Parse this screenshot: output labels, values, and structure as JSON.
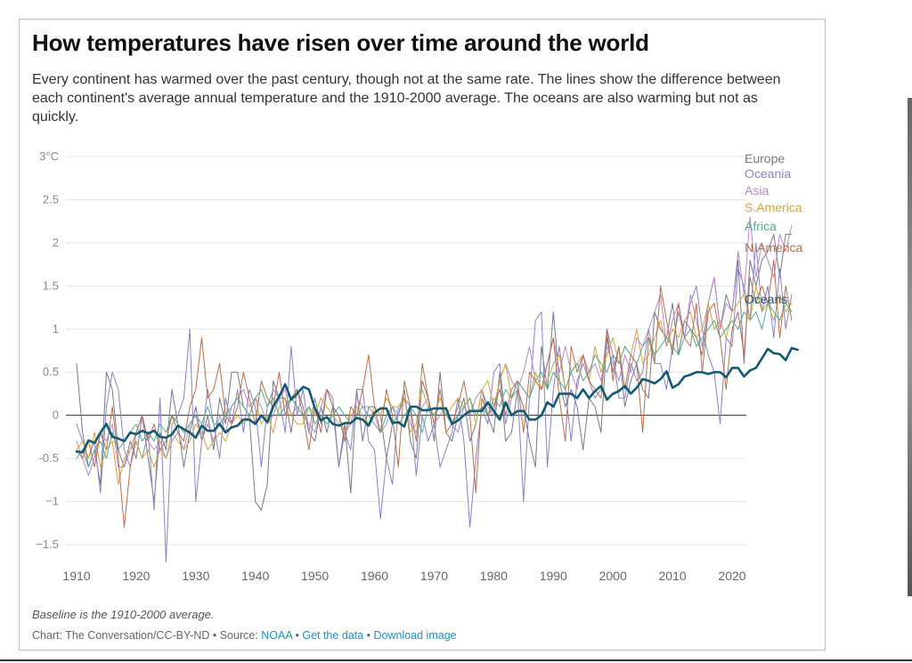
{
  "header": {
    "title": "How temperatures have risen over time around the world",
    "subtitle": "Every continent has warmed over the past century, though not at the same rate. The lines show the difference between each continent's average annual temperature and the 1910-2000 average. The oceans are also warming but not as quickly."
  },
  "footer": {
    "note": "Baseline is the 1910-2000 average.",
    "credit": "Chart: The Conversation/CC-BY-ND • Source: ",
    "source_link": "NOAA",
    "sep1": " • ",
    "data_link": "Get the data",
    "sep2": " • ",
    "download_link": "Download image"
  },
  "chart_data": {
    "type": "line",
    "title": "How temperatures have risen over time around the world",
    "xlabel": "",
    "ylabel": "",
    "xlim": [
      1910,
      2020
    ],
    "ylim": [
      -1.5,
      3
    ],
    "x_ticks": [
      1910,
      1920,
      1930,
      1940,
      1950,
      1960,
      1970,
      1980,
      1990,
      2000,
      2010,
      2020
    ],
    "y_ticks": [
      {
        "value": 3,
        "label": "3°C"
      },
      {
        "value": 2.5,
        "label": "2.5"
      },
      {
        "value": 2,
        "label": "2"
      },
      {
        "value": 1.5,
        "label": "1.5"
      },
      {
        "value": 1,
        "label": "1"
      },
      {
        "value": 0.5,
        "label": "0.5"
      },
      {
        "value": 0,
        "label": "0"
      },
      {
        "value": -0.5,
        "label": "-0.5"
      },
      {
        "value": -1,
        "label": "−1"
      },
      {
        "value": -1.5,
        "label": "−1.5"
      }
    ],
    "grid": true,
    "x_start": 1910,
    "series": [
      {
        "name": "Europe",
        "color": "#757a8a",
        "width": 1,
        "values": [
          0.6,
          -0.2,
          -0.6,
          -0.4,
          -0.8,
          0.5,
          0.3,
          -0.4,
          -0.6,
          -0.3,
          -0.5,
          0.0,
          -0.5,
          -1.0,
          -0.2,
          -0.4,
          0.3,
          -0.1,
          -0.6,
          -0.2,
          0.1,
          -0.3,
          0.0,
          -0.4,
          0.2,
          -0.1,
          0.5,
          0.5,
          0.1,
          0.0,
          -1.0,
          -1.1,
          -0.8,
          0.4,
          0.2,
          0.2,
          -0.2,
          0.3,
          0.1,
          -0.2,
          -0.3,
          0.1,
          -0.2,
          0.1,
          -0.6,
          -0.1,
          -0.9,
          0.3,
          -0.3,
          0.1,
          0.1,
          0.0,
          -0.5,
          -0.1,
          0.0,
          0.3,
          -0.3,
          -0.5,
          0.4,
          0.2,
          -0.3,
          0.5,
          -0.2,
          -0.3,
          0.0,
          0.2,
          -0.3,
          -0.1,
          0.3,
          0.0,
          -0.2,
          0.5,
          -0.3,
          -0.2,
          0.3,
          0.1,
          -0.3,
          -0.6,
          0.8,
          0.3,
          1.2,
          0.4,
          0.1,
          0.3,
          0.1,
          -0.4,
          0.2,
          0.1,
          -0.2,
          0.9,
          0.5,
          0.8,
          0.1,
          0.4,
          0.6,
          0.3,
          0.2,
          1.2,
          1.0,
          0.9,
          1.3,
          0.7,
          1.1,
          1.0,
          0.9,
          0.7,
          1.3,
          1.6,
          1.0,
          1.4,
          1.2,
          1.8,
          0.6,
          1.8,
          1.5,
          1.8,
          1.9,
          2.1,
          1.6,
          2.1,
          2.1
        ]
      },
      {
        "name": "Oceania",
        "color": "#8b82c8",
        "width": 1,
        "values": [
          -0.1,
          -0.3,
          -0.5,
          -0.3,
          -0.9,
          0.1,
          0.5,
          0.3,
          -0.4,
          -0.6,
          -0.3,
          -0.5,
          -0.2,
          -1.1,
          0.2,
          -1.7,
          -0.1,
          0.0,
          0.2,
          1.0,
          -1.0,
          -0.3,
          0.3,
          -0.1,
          -0.5,
          0.2,
          -0.1,
          0.3,
          -0.2,
          0.3,
          0.1,
          -0.6,
          0.1,
          0.3,
          0.2,
          -0.2,
          0.8,
          0.0,
          0.3,
          -0.2,
          0.2,
          -0.1,
          0.3,
          0.2,
          -0.6,
          -0.2,
          -0.4,
          0.3,
          0.3,
          -0.3,
          -0.4,
          -1.2,
          -0.5,
          -0.8,
          0.1,
          0.2,
          0.1,
          -0.7,
          0.0,
          -0.3,
          -0.1,
          -0.6,
          -0.4,
          -0.2,
          0.2,
          -0.3,
          -1.3,
          -0.5,
          0.1,
          -0.1,
          0.5,
          0.6,
          -0.1,
          0.2,
          0.3,
          -1.0,
          0.2,
          1.1,
          1.2,
          -0.6,
          0.3,
          0.8,
          0.3,
          -0.3,
          0.4,
          0.6,
          0.4,
          0.2,
          0.3,
          1.0,
          0.7,
          0.2,
          0.2,
          0.6,
          0.4,
          0.5,
          1.0,
          0.6,
          0.6,
          0.3,
          0.8,
          1.2,
          0.9,
          1.3,
          1.5,
          1.0,
          0.7,
          0.5,
          -0.1,
          0.9,
          0.8,
          1.7,
          1.5,
          1.1,
          2.0,
          1.2,
          1.5,
          0.9,
          1.7,
          1.0,
          1.4
        ]
      },
      {
        "name": "Asia",
        "color": "#b989cc",
        "width": 1,
        "values": [
          -0.3,
          -0.5,
          -0.7,
          -0.5,
          -0.2,
          -0.3,
          -0.1,
          -0.6,
          -0.6,
          -0.4,
          -0.2,
          0.0,
          -0.3,
          -0.4,
          -0.3,
          -0.5,
          -0.3,
          -0.2,
          -0.4,
          -0.1,
          0.0,
          -0.3,
          -0.1,
          -0.3,
          0.0,
          -0.2,
          0.1,
          0.2,
          0.3,
          0.1,
          0.2,
          0.1,
          -0.1,
          0.0,
          0.2,
          0.3,
          0.0,
          0.1,
          0.0,
          -0.1,
          -0.2,
          0.1,
          0.3,
          0.1,
          0.0,
          -0.2,
          -0.1,
          0.2,
          0.1,
          0.1,
          0.0,
          -0.2,
          -0.1,
          0.1,
          0.0,
          0.2,
          -0.1,
          -0.2,
          0.1,
          0.2,
          -0.1,
          0.0,
          0.1,
          -0.1,
          -0.2,
          0.1,
          0.0,
          0.2,
          0.3,
          0.1,
          0.0,
          0.4,
          0.6,
          0.4,
          0.3,
          0.5,
          0.8,
          0.4,
          0.3,
          0.6,
          0.9,
          0.5,
          0.8,
          0.5,
          0.3,
          0.7,
          0.5,
          0.6,
          0.4,
          0.8,
          0.6,
          0.4,
          0.7,
          0.5,
          0.9,
          0.8,
          1.0,
          1.2,
          1.4,
          0.8,
          1.1,
          1.3,
          0.9,
          1.4,
          1.1,
          0.8,
          1.3,
          1.6,
          1.0,
          1.3,
          1.2,
          1.9,
          1.4,
          2.3,
          1.6,
          2.0,
          1.8,
          1.6,
          2.1,
          1.9,
          2.2
        ]
      },
      {
        "name": "S.America",
        "color": "#d3a637",
        "width": 1,
        "values": [
          -0.4,
          -0.3,
          -0.5,
          -0.2,
          -0.6,
          -0.4,
          -0.3,
          -0.8,
          -0.5,
          -0.4,
          -0.3,
          -0.5,
          -0.4,
          -0.6,
          -0.4,
          -0.5,
          -0.2,
          -0.3,
          -0.4,
          -0.3,
          -0.1,
          -0.2,
          -0.4,
          -0.3,
          -0.2,
          -0.3,
          -0.1,
          0.0,
          -0.1,
          0.0,
          0.2,
          -0.1,
          0.0,
          -0.2,
          0.1,
          0.2,
          0.0,
          -0.1,
          -0.1,
          0.1,
          0.0,
          0.2,
          0.1,
          0.0,
          -0.1,
          -0.2,
          0.0,
          0.1,
          0.0,
          -0.1,
          0.1,
          0.0,
          0.2,
          0.1,
          0.1,
          0.2,
          -0.2,
          -0.1,
          0.3,
          0.1,
          0.0,
          0.2,
          0.0,
          0.1,
          0.2,
          0.1,
          0.2,
          -0.1,
          0.3,
          0.4,
          0.1,
          0.4,
          0.6,
          0.2,
          0.4,
          0.3,
          0.2,
          0.5,
          0.3,
          0.4,
          0.6,
          0.7,
          0.3,
          0.5,
          0.6,
          0.7,
          0.4,
          0.8,
          0.5,
          0.7,
          0.9,
          0.6,
          0.8,
          0.7,
          1.0,
          0.6,
          0.7,
          0.9,
          1.1,
          0.8,
          1.0,
          0.9,
          1.1,
          1.2,
          0.9,
          1.0,
          1.3,
          1.0,
          1.1,
          0.9,
          1.2,
          1.3,
          1.4,
          1.1,
          1.5,
          1.2,
          1.3,
          1.1,
          1.4,
          1.2,
          1.3
        ]
      },
      {
        "name": "Africa",
        "color": "#4daf93",
        "width": 1,
        "values": [
          -0.5,
          -0.4,
          -0.6,
          -0.4,
          -0.3,
          -0.5,
          -0.2,
          -0.4,
          -0.3,
          -0.2,
          -0.1,
          -0.3,
          -0.2,
          -0.3,
          -0.1,
          -0.2,
          0.0,
          -0.1,
          -0.2,
          -0.1,
          0.0,
          -0.1,
          0.1,
          -0.1,
          -0.1,
          0.0,
          0.1,
          0.2,
          0.1,
          0.0,
          0.2,
          0.3,
          0.1,
          0.2,
          0.0,
          0.1,
          0.2,
          0.1,
          0.0,
          0.1,
          -0.1,
          0.0,
          -0.1,
          0.0,
          0.1,
          0.0,
          -0.1,
          0.0,
          0.1,
          0.0,
          -0.1,
          -0.2,
          0.0,
          0.1,
          -0.1,
          0.0,
          0.1,
          0.0,
          -0.2,
          0.1,
          0.0,
          0.1,
          0.0,
          -0.1,
          0.0,
          0.1,
          0.2,
          0.0,
          0.1,
          0.0,
          0.2,
          0.1,
          0.3,
          0.2,
          0.4,
          0.3,
          0.2,
          0.4,
          0.5,
          0.3,
          0.5,
          0.4,
          0.3,
          0.5,
          0.6,
          0.4,
          0.5,
          0.7,
          0.6,
          0.5,
          0.7,
          0.6,
          0.8,
          0.7,
          0.6,
          0.8,
          0.9,
          0.7,
          0.8,
          0.9,
          0.8,
          0.7,
          0.9,
          1.0,
          0.8,
          0.9,
          1.0,
          1.1,
          0.9,
          1.0,
          1.1,
          1.0,
          1.2,
          1.1,
          1.2,
          1.0,
          1.3,
          1.2,
          1.1,
          1.3,
          1.2
        ]
      },
      {
        "name": "N.America",
        "color": "#b86f4b",
        "width": 1,
        "values": [
          -0.4,
          -0.5,
          -0.3,
          -0.6,
          -0.2,
          -0.4,
          0.1,
          -0.5,
          -1.3,
          -0.6,
          -0.2,
          0.0,
          -0.3,
          -0.1,
          -0.4,
          -0.3,
          0.0,
          -0.2,
          -0.3,
          0.1,
          0.3,
          0.9,
          0.2,
          0.3,
          0.6,
          0.0,
          -0.1,
          0.1,
          0.5,
          0.2,
          -0.1,
          0.4,
          0.2,
          0.1,
          0.5,
          0.0,
          0.2,
          0.3,
          0.0,
          -0.4,
          0.1,
          -0.2,
          0.3,
          0.1,
          0.0,
          -0.3,
          0.1,
          0.0,
          0.3,
          0.7,
          0.1,
          -0.2,
          0.3,
          0.0,
          -0.6,
          0.4,
          0.1,
          -0.3,
          0.6,
          0.2,
          -0.1,
          0.3,
          -0.2,
          -0.1,
          0.1,
          0.4,
          0.0,
          -0.9,
          0.2,
          0.0,
          0.1,
          0.3,
          0.0,
          0.3,
          0.4,
          -0.2,
          0.5,
          0.4,
          0.3,
          0.6,
          0.9,
          0.2,
          -0.3,
          0.8,
          0.5,
          0.7,
          0.4,
          0.3,
          0.2,
          1.0,
          0.4,
          0.8,
          0.3,
          0.7,
          0.6,
          -0.2,
          0.9,
          0.6,
          1.5,
          1.1,
          0.7,
          1.3,
          0.9,
          0.8,
          1.3,
          0.5,
          1.2,
          1.3,
          0.9,
          0.3,
          1.0,
          1.2,
          0.7,
          1.6,
          1.3,
          1.5,
          1.3,
          1.8,
          0.9,
          1.5,
          1.1
        ]
      },
      {
        "name": "Oceans",
        "color": "#135b72",
        "width": 2.6,
        "values": [
          -0.42,
          -0.43,
          -0.29,
          -0.32,
          -0.2,
          -0.1,
          -0.25,
          -0.27,
          -0.3,
          -0.2,
          -0.22,
          -0.18,
          -0.21,
          -0.18,
          -0.25,
          -0.26,
          -0.22,
          -0.12,
          -0.16,
          -0.2,
          -0.26,
          -0.12,
          -0.18,
          -0.18,
          -0.1,
          -0.2,
          -0.14,
          -0.12,
          -0.05,
          -0.05,
          -0.1,
          0.0,
          -0.08,
          0.1,
          0.22,
          0.36,
          0.18,
          0.25,
          0.33,
          0.3,
          0.08,
          -0.06,
          -0.02,
          -0.1,
          -0.12,
          -0.09,
          -0.09,
          -0.03,
          -0.05,
          -0.12,
          0.03,
          0.08,
          0.08,
          -0.09,
          -0.08,
          -0.13,
          0.1,
          0.1,
          0.06,
          0.06,
          0.08,
          0.08,
          0.08,
          -0.1,
          -0.06,
          0.0,
          0.05,
          0.05,
          0.05,
          0.15,
          0.05,
          -0.05,
          0.15,
          0.0,
          0.05,
          0.05,
          -0.05,
          -0.05,
          0.0,
          0.15,
          0.1,
          0.25,
          0.25,
          0.25,
          0.2,
          0.3,
          0.2,
          0.28,
          0.34,
          0.18,
          0.25,
          0.28,
          0.34,
          0.25,
          0.32,
          0.42,
          0.4,
          0.37,
          0.42,
          0.51,
          0.32,
          0.36,
          0.45,
          0.47,
          0.5,
          0.5,
          0.48,
          0.5,
          0.5,
          0.44,
          0.55,
          0.55,
          0.45,
          0.52,
          0.55,
          0.66,
          0.77,
          0.72,
          0.71,
          0.64,
          0.78,
          0.76
        ]
      }
    ],
    "legend": [
      "Europe",
      "Oceania",
      "Asia",
      "S.America",
      "Africa",
      "N.America",
      "Oceans"
    ]
  }
}
